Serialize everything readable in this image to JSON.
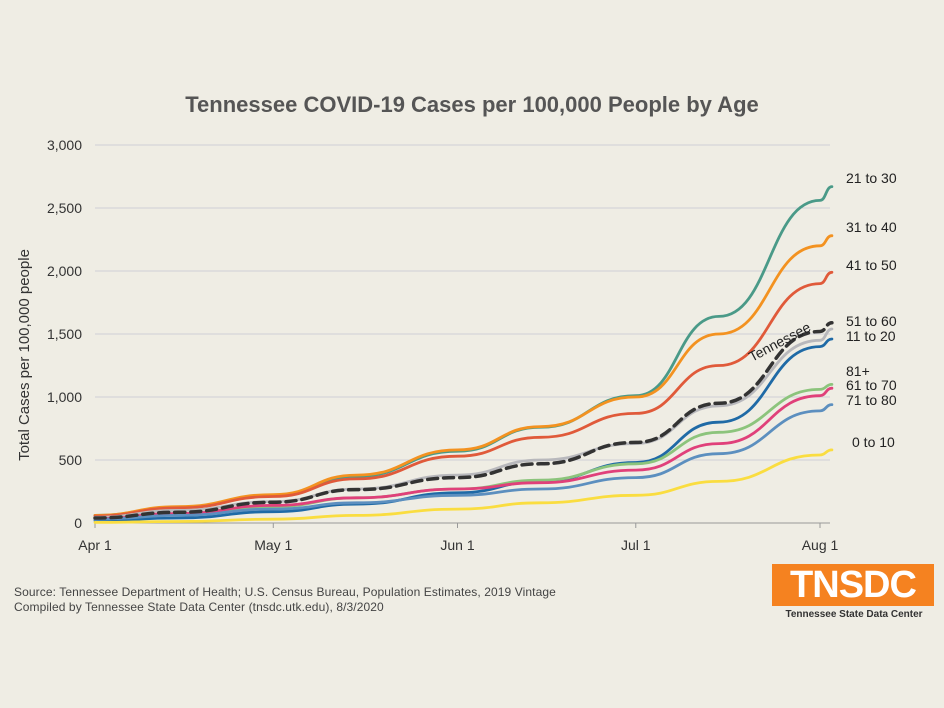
{
  "chart_data": {
    "type": "line",
    "title": "Tennessee COVID-19 Cases per 100,000 People by Age",
    "ylabel": "Total Cases per 100,000 people",
    "xlabel": "",
    "ylim": [
      0,
      3000
    ],
    "yticks": [
      "0",
      "500",
      "1,000",
      "1,500",
      "2,000",
      "2,500",
      "3,000"
    ],
    "ytick_values": [
      0,
      500,
      1000,
      1500,
      2000,
      2500,
      3000
    ],
    "xticks": [
      "Apr 1",
      "May 1",
      "Jun 1",
      "Jul 1",
      "Aug 1"
    ],
    "xtick_values": [
      "2020-04-01",
      "2020-05-01",
      "2020-06-01",
      "2020-07-01",
      "2020-08-01"
    ],
    "x": [
      "2020-04-01",
      "2020-04-15",
      "2020-05-01",
      "2020-05-15",
      "2020-06-01",
      "2020-06-15",
      "2020-07-01",
      "2020-07-15",
      "2020-08-01",
      "2020-08-03"
    ],
    "grid": "horizontal",
    "series": [
      {
        "name": "21 to 30",
        "color": "#4a9a88",
        "values": [
          60,
          125,
          215,
          370,
          570,
          760,
          1010,
          1640,
          2560,
          2670
        ]
      },
      {
        "name": "31 to 40",
        "color": "#f39220",
        "values": [
          60,
          130,
          225,
          380,
          580,
          765,
          1000,
          1500,
          2200,
          2280
        ]
      },
      {
        "name": "41 to 50",
        "color": "#e05a3a",
        "values": [
          55,
          120,
          210,
          350,
          530,
          680,
          870,
          1250,
          1900,
          1990
        ]
      },
      {
        "name": "51 to 60",
        "color": "#b8b8bc",
        "values": [
          45,
          100,
          170,
          270,
          380,
          500,
          630,
          930,
          1450,
          1540
        ]
      },
      {
        "name": "Tennessee",
        "color": "#333333",
        "dashed": true,
        "values": [
          40,
          85,
          165,
          265,
          360,
          470,
          640,
          950,
          1520,
          1590
        ]
      },
      {
        "name": "11 to 20",
        "color": "#1f6aa6",
        "values": [
          20,
          40,
          90,
          150,
          240,
          330,
          480,
          800,
          1400,
          1460
        ]
      },
      {
        "name": "81+",
        "color": "#8cc47c",
        "values": [
          30,
          70,
          130,
          200,
          270,
          340,
          470,
          720,
          1060,
          1100
        ]
      },
      {
        "name": "61 to 70",
        "color": "#e0407a",
        "values": [
          35,
          75,
          140,
          200,
          270,
          320,
          420,
          630,
          1010,
          1070
        ]
      },
      {
        "name": "71 to 80",
        "color": "#5c8fbf",
        "values": [
          30,
          60,
          110,
          160,
          220,
          270,
          360,
          550,
          890,
          940
        ]
      },
      {
        "name": "0 to 10",
        "color": "#fadd40",
        "values": [
          5,
          12,
          30,
          60,
          110,
          160,
          220,
          330,
          540,
          580
        ]
      }
    ]
  },
  "source_line1": "Source:  Tennessee  Department of Health;  U.S.  Census Bureau,  Population Estimates,  2019 Vintage",
  "source_line2": "Compiled by Tennessee State Data Center (tnsdc.utk.edu), 8/3/2020",
  "logo": {
    "text": "TNSDC",
    "subtitle": "Tennessee State Data Center",
    "color": "#f58220"
  }
}
